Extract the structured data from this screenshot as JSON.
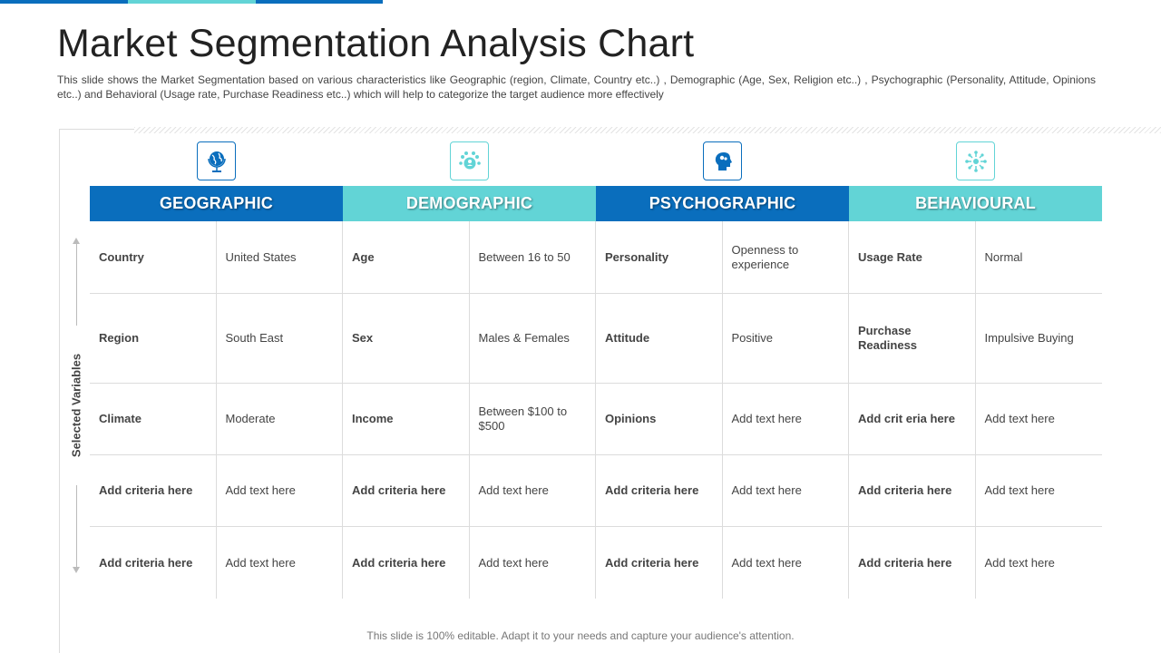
{
  "colors": {
    "dark": "#0a6ebd",
    "light": "#62d4d6"
  },
  "slide": {
    "title": "Market Segmentation Analysis Chart",
    "description": "This slide shows the Market Segmentation based on various characteristics like Geographic (region, Climate, Country etc..) , Demographic (Age, Sex, Religion etc..) , Psychographic (Personality, Attitude, Opinions etc..) and Behavioral (Usage rate, Purchase Readiness etc..) which will help to categorize the target audience more effectively",
    "side_label": "Selected Variables",
    "footer": "This slide is 100% editable. Adapt it to your needs and capture your audience's attention."
  },
  "segments": [
    {
      "label": "GEOGRAPHIC",
      "icon": "globe-icon",
      "rows": [
        [
          "Country",
          "United States"
        ],
        [
          "Region",
          "South East"
        ],
        [
          "Climate",
          "Moderate"
        ],
        [
          "Add criteria here",
          "Add text here"
        ],
        [
          "Add criteria here",
          "Add text here"
        ]
      ]
    },
    {
      "label": "DEMOGRAPHIC",
      "icon": "people-group-icon",
      "rows": [
        [
          "Age",
          "Between 16 to 50"
        ],
        [
          "Sex",
          "Males & Females"
        ],
        [
          "Income",
          "Between $100 to $500"
        ],
        [
          "Add criteria here",
          "Add text here"
        ],
        [
          "Add criteria here",
          "Add text here"
        ]
      ]
    },
    {
      "label": "PSYCHOGRAPHIC",
      "icon": "head-brain-icon",
      "rows": [
        [
          "Personality",
          "Openness to experience"
        ],
        [
          "Attitude",
          "Positive"
        ],
        [
          "Opinions",
          "Add text here"
        ],
        [
          "Add criteria here",
          "Add text here"
        ],
        [
          "Add criteria here",
          "Add text here"
        ]
      ]
    },
    {
      "label": "BEHAVIOURAL",
      "icon": "network-icon",
      "rows": [
        [
          "Usage Rate",
          "Normal"
        ],
        [
          "Purchase Readiness",
          "Impulsive  Buying"
        ],
        [
          "Add crit eria here",
          "Add text here"
        ],
        [
          "Add criteria here",
          "Add text here"
        ],
        [
          "Add criteria here",
          "Add text here"
        ]
      ]
    }
  ]
}
